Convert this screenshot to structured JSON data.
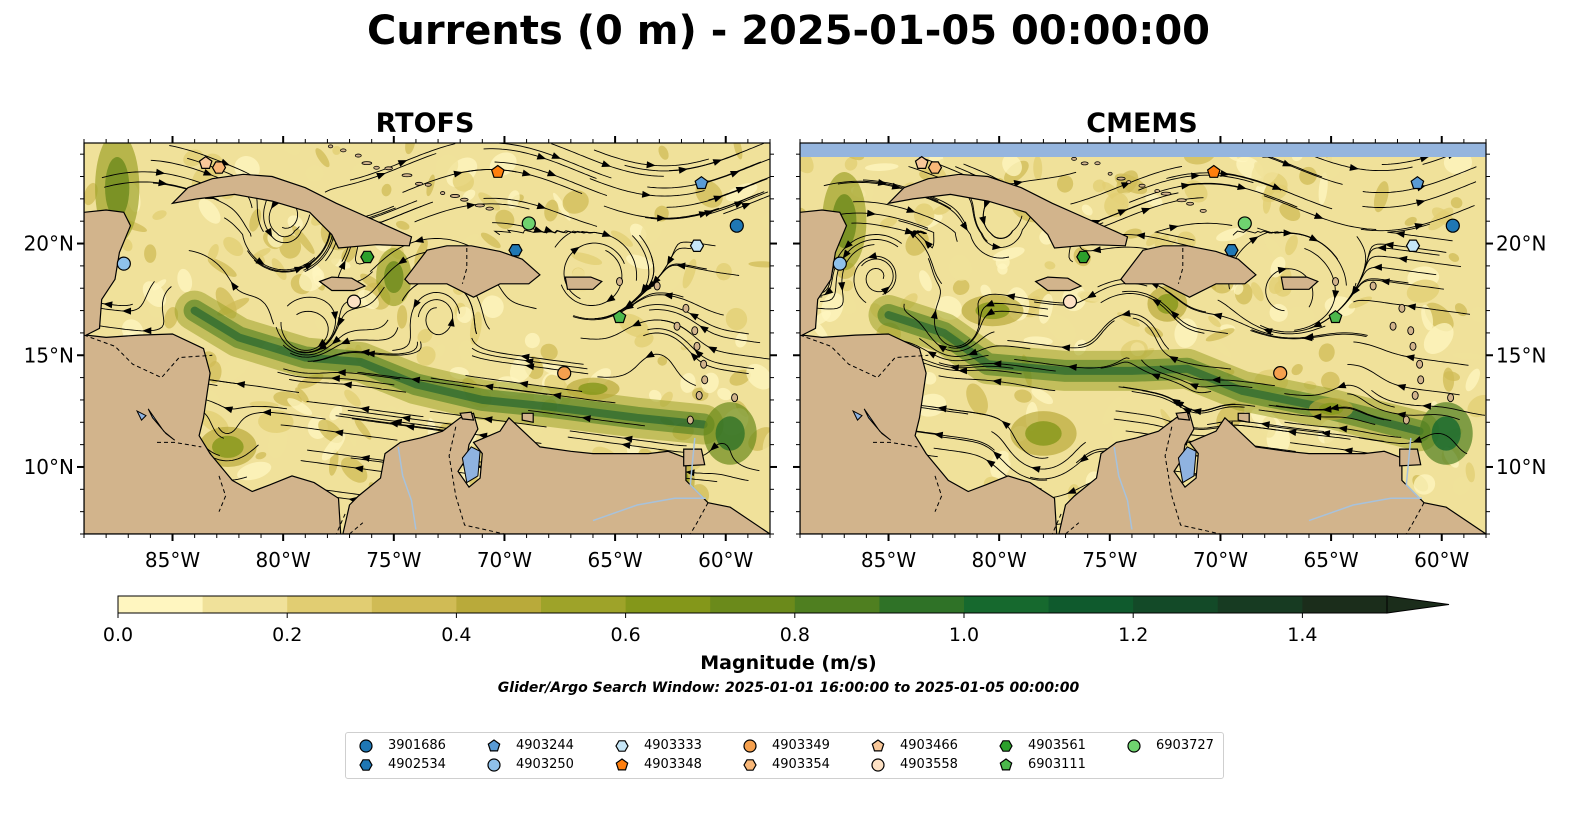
{
  "title": "Currents (0 m) - 2025-01-05 00:00:00",
  "panels": [
    {
      "title": "RTOFS"
    },
    {
      "title": "CMEMS"
    }
  ],
  "map": {
    "lon_range": [
      -89,
      -58
    ],
    "lat_range": [
      7,
      24.5
    ],
    "lon_ticks": [
      "85°W",
      "80°W",
      "75°W",
      "70°W",
      "65°W",
      "60°W"
    ],
    "lat_ticks": [
      "10°N",
      "15°N",
      "20°N"
    ],
    "land_color": "#d2b48c",
    "lake_color": "#8fb3e0"
  },
  "colorbar": {
    "label": "Magnitude (m/s)",
    "ticks": [
      "0.0",
      "0.2",
      "0.4",
      "0.6",
      "0.8",
      "1.0",
      "1.2",
      "1.4"
    ],
    "range": [
      0,
      1.5
    ],
    "extend": "max",
    "colors": [
      "#fff6c0",
      "#f0e19a",
      "#e1cd72",
      "#d0bb55",
      "#b9aa3a",
      "#9ea329",
      "#84971a",
      "#6b8a1b",
      "#4f7f20",
      "#2f7227",
      "#16692e",
      "#0f5a2d",
      "#134a28",
      "#173b22",
      "#1b2d1b"
    ]
  },
  "search_window": "Glider/Argo Search Window: 2025-01-01 16:00:00 to 2025-01-05 00:00:00",
  "floats": [
    {
      "id": "3901686",
      "marker": "circle",
      "color": "#1f77b4",
      "lon": -59.5,
      "lat": 20.8
    },
    {
      "id": "4902534",
      "marker": "hexagon",
      "color": "#1f77b4",
      "lon": -69.5,
      "lat": 19.7
    },
    {
      "id": "4903244",
      "marker": "pentagon",
      "color": "#5a9bd5",
      "lon": -61.1,
      "lat": 22.7
    },
    {
      "id": "4903250",
      "marker": "circle",
      "color": "#8fc1ea",
      "lon": -87.2,
      "lat": 19.1
    },
    {
      "id": "4903333",
      "marker": "hexagon",
      "color": "#c6e6f7",
      "lon": -61.3,
      "lat": 19.9
    },
    {
      "id": "4903348",
      "marker": "pentagon",
      "color": "#ff7f0e",
      "lon": -70.3,
      "lat": 23.2
    },
    {
      "id": "4903349",
      "marker": "circle",
      "color": "#f5a04e",
      "lon": -67.3,
      "lat": 14.2
    },
    {
      "id": "4903354",
      "marker": "hexagon",
      "color": "#f8b778",
      "lon": -82.9,
      "lat": 23.4
    },
    {
      "id": "4903466",
      "marker": "pentagon",
      "color": "#f9c89a",
      "lon": -83.5,
      "lat": 23.6
    },
    {
      "id": "4903558",
      "marker": "circle",
      "color": "#fde1c4",
      "lon": -76.8,
      "lat": 17.4
    },
    {
      "id": "4903561",
      "marker": "hexagon",
      "color": "#2ca02c",
      "lon": -76.2,
      "lat": 19.4
    },
    {
      "id": "6903111",
      "marker": "pentagon",
      "color": "#4cb84c",
      "lon": -64.8,
      "lat": 16.7
    },
    {
      "id": "6903727",
      "marker": "circle",
      "color": "#6fd36f",
      "lon": -68.9,
      "lat": 20.9
    }
  ]
}
